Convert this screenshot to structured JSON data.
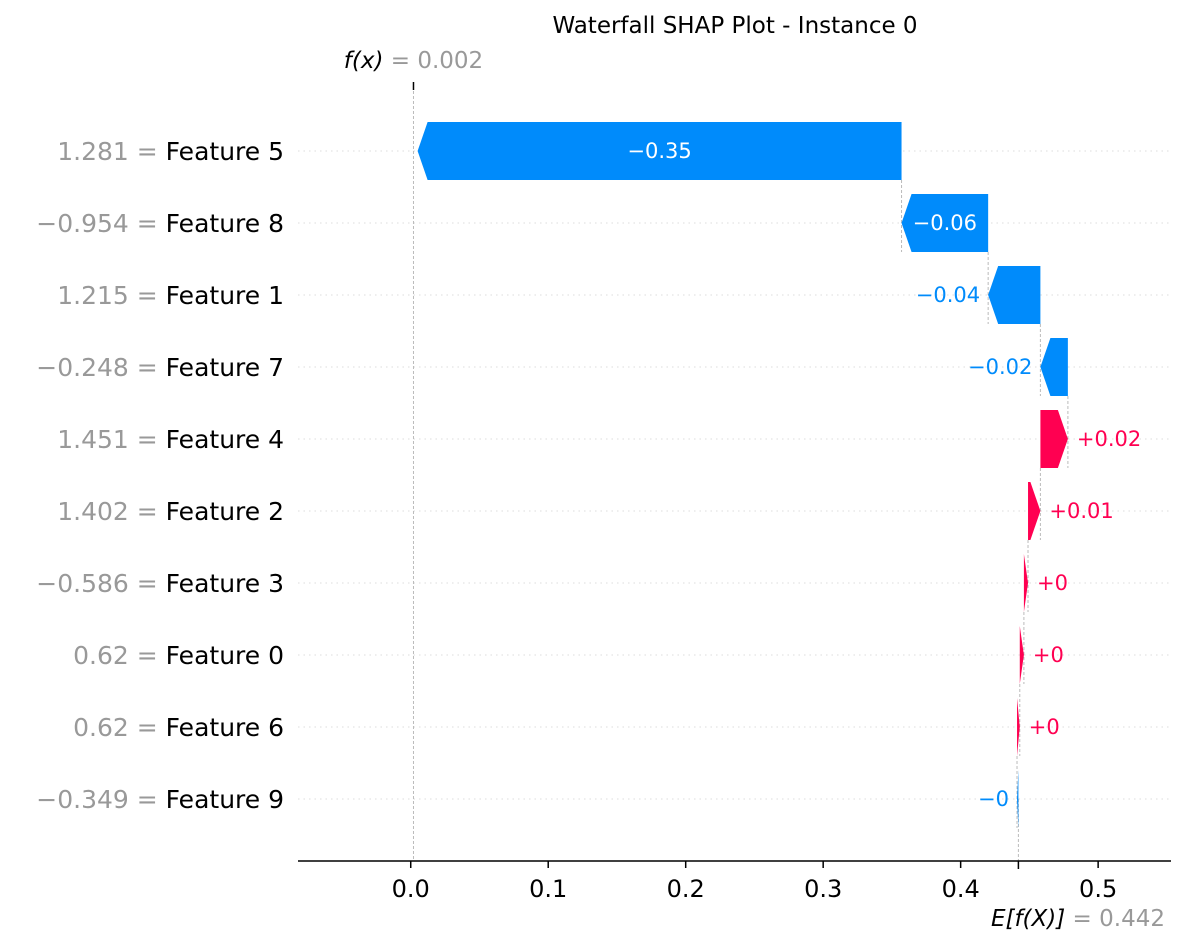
{
  "chart_data": {
    "type": "waterfall",
    "title": "Waterfall SHAP Plot - Instance 0",
    "fx_label": "f(x)",
    "fx_value": 0.002,
    "fx_value_text": "0.002",
    "base_label": "E[f(X)]",
    "base_value": 0.442,
    "base_value_text": "0.442",
    "features": [
      {
        "value": "1.281",
        "name": "Feature 5",
        "shap": -0.352,
        "label": "−0.35"
      },
      {
        "value": "−0.954",
        "name": "Feature 8",
        "shap": -0.063,
        "label": "−0.06"
      },
      {
        "value": "1.215",
        "name": "Feature 1",
        "shap": -0.038,
        "label": "−0.04"
      },
      {
        "value": "−0.248",
        "name": "Feature 7",
        "shap": -0.02,
        "label": "−0.02"
      },
      {
        "value": "1.451",
        "name": "Feature 4",
        "shap": 0.02,
        "label": "+0.02"
      },
      {
        "value": "1.402",
        "name": "Feature 2",
        "shap": 0.009,
        "label": "+0.01"
      },
      {
        "value": "−0.586",
        "name": "Feature 3",
        "shap": 0.003,
        "label": "+0"
      },
      {
        "value": "0.62",
        "name": "Feature 0",
        "shap": 0.003,
        "label": "+0"
      },
      {
        "value": "0.62",
        "name": "Feature 6",
        "shap": 0.002,
        "label": "+0"
      },
      {
        "value": "−0.349",
        "name": "Feature 9",
        "shap": -0.001,
        "label": "−0"
      }
    ],
    "xticks": [
      0.0,
      0.1,
      0.2,
      0.3,
      0.4,
      0.5
    ],
    "xtick_labels": [
      "0.0",
      "0.1",
      "0.2",
      "0.3",
      "0.4",
      "0.5"
    ],
    "xlim": [
      -0.082,
      0.553
    ],
    "colors": {
      "negative": "#008bfb",
      "positive": "#ff0051",
      "feature_value": "#999999",
      "inside_label": "#ffffff"
    }
  }
}
